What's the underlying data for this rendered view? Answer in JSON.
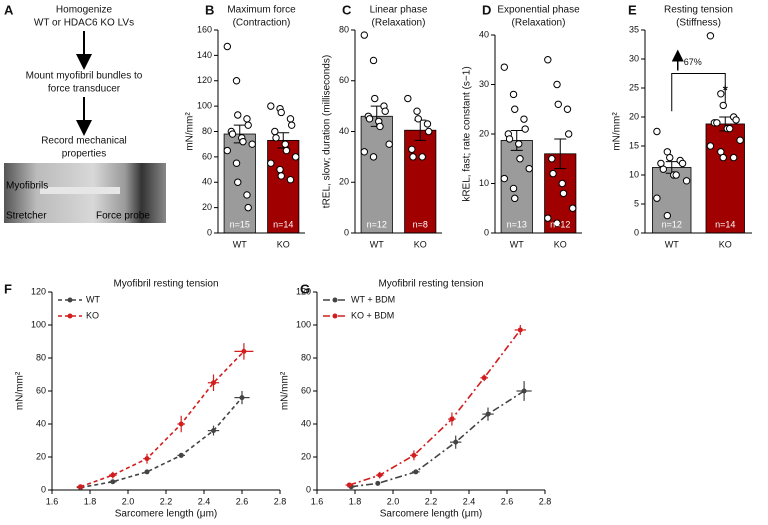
{
  "diagram": {
    "label": "A",
    "steps": [
      [
        "Homogenize",
        "WT or HDAC6 KO LVs"
      ],
      [
        "Mount myofibril bundles to",
        "force transducer"
      ],
      [
        "Record mechanical",
        "properties"
      ]
    ],
    "photo_labels": [
      "Myofibrils",
      "Stretcher",
      "Force probe"
    ]
  },
  "chart_data": [
    {
      "type": "bar",
      "panel": "B",
      "title": [
        "Maximum force",
        "(Contraction)"
      ],
      "ylabel": "mN/mm²",
      "categories": [
        "WT",
        "KO"
      ],
      "values": [
        78,
        73
      ],
      "errors": [
        7,
        6
      ],
      "colors": [
        "#9b9b9b",
        "#a00000"
      ],
      "n_labels": [
        "n=15",
        "n=14"
      ],
      "points": [
        [
          147,
          120,
          93,
          90,
          85,
          80,
          78,
          75,
          72,
          70,
          65,
          55,
          40,
          30,
          20
        ],
        [
          100,
          98,
          95,
          90,
          85,
          80,
          75,
          70,
          65,
          60,
          55,
          50,
          45,
          42
        ]
      ],
      "ylim": [
        0,
        160
      ],
      "yticks": [
        0,
        20,
        40,
        60,
        80,
        100,
        120,
        140,
        160
      ]
    },
    {
      "type": "bar",
      "panel": "C",
      "title": [
        "Linear phase",
        "(Relaxation)"
      ],
      "ylabel": "tREL, slow; duration (milliseconds)",
      "categories": [
        "WT",
        "KO"
      ],
      "values": [
        46,
        40.5
      ],
      "errors": [
        4,
        4
      ],
      "colors": [
        "#9b9b9b",
        "#a00000"
      ],
      "n_labels": [
        "n=12",
        "n=8"
      ],
      "points": [
        [
          78,
          68,
          53,
          50,
          48,
          46,
          45,
          44,
          42,
          35,
          32,
          30
        ],
        [
          53,
          48,
          45,
          43,
          40,
          33,
          30,
          30
        ]
      ],
      "ylim": [
        0,
        80
      ],
      "yticks": [
        0,
        20,
        40,
        60,
        80
      ]
    },
    {
      "type": "bar",
      "panel": "D",
      "title": [
        "Exponential phase",
        "(Relaxation)"
      ],
      "ylabel": "kREL, fast; rate constant (s−1)",
      "categories": [
        "WT",
        "KO"
      ],
      "values": [
        18.7,
        16
      ],
      "errors": [
        2,
        3
      ],
      "colors": [
        "#9b9b9b",
        "#a00000"
      ],
      "n_labels": [
        "n=13",
        "n=12"
      ],
      "points": [
        [
          33.5,
          28,
          25,
          23,
          21,
          20,
          19,
          18,
          15,
          13,
          11,
          9,
          7
        ],
        [
          35,
          30,
          26,
          25,
          20,
          15,
          12,
          10,
          8,
          5,
          3,
          2
        ]
      ],
      "ylim": [
        0,
        40
      ],
      "yticks": [
        0,
        10,
        20,
        30,
        40
      ]
    },
    {
      "type": "bar",
      "panel": "E",
      "title": [
        "Resting tension",
        "(Stiffness)"
      ],
      "ylabel": "mN/mm²",
      "categories": [
        "WT",
        "KO"
      ],
      "values": [
        11.3,
        18.8
      ],
      "errors": [
        1,
        1.2
      ],
      "colors": [
        "#9b9b9b",
        "#a00000"
      ],
      "n_labels": [
        "n=12",
        "n=14"
      ],
      "points": [
        [
          17.5,
          14,
          13,
          12.5,
          12,
          12,
          11,
          10,
          10,
          9,
          6,
          3
        ],
        [
          34,
          24,
          22,
          20,
          19.5,
          19,
          19,
          18,
          18,
          16,
          15,
          14,
          13,
          13
        ]
      ],
      "annotations": [
        "67%",
        "*"
      ],
      "ylim": [
        0,
        35
      ],
      "yticks": [
        0,
        5,
        10,
        15,
        20,
        25,
        30,
        35
      ]
    },
    {
      "type": "line",
      "panel": "F",
      "title": "Myofibril resting tension",
      "xlabel": "Sarcomere length (μm)",
      "ylabel": "mN/mm²",
      "line_style": "dashed",
      "series": [
        {
          "name": "WT",
          "color": "#444444",
          "x": [
            1.75,
            1.92,
            2.1,
            2.28,
            2.45,
            2.6
          ],
          "values": [
            1.5,
            5,
            11,
            21,
            36,
            56
          ],
          "xerr": [
            0.02,
            0.02,
            0.01,
            0.02,
            0.03,
            0.04
          ],
          "yerr": [
            0.5,
            1,
            1,
            1.5,
            3,
            4
          ]
        },
        {
          "name": "KO",
          "color": "#d21e1e",
          "x": [
            1.75,
            1.92,
            2.1,
            2.28,
            2.45,
            2.61
          ],
          "values": [
            2,
            9,
            19,
            40,
            65,
            84
          ],
          "xerr": [
            0.02,
            0.02,
            0.02,
            0.02,
            0.03,
            0.05
          ],
          "yerr": [
            0.5,
            2,
            3,
            5,
            5,
            5
          ]
        }
      ],
      "xlim": [
        1.6,
        2.8
      ],
      "xticks": [
        1.6,
        1.8,
        {
          "value": 2,
          "label": "2.0"
        },
        2.2,
        2.4,
        2.6,
        2.8
      ],
      "ylim": [
        0,
        120
      ],
      "yticks": [
        0,
        20,
        40,
        60,
        80,
        100,
        120
      ]
    },
    {
      "type": "line",
      "panel": "G",
      "title": "Myofibril resting tension",
      "xlabel": "Sarcomere length (μm)",
      "ylabel": "mN/mm²",
      "line_style": "dashdot",
      "series": [
        {
          "name": "WT + BDM",
          "color": "#444444",
          "x": [
            1.78,
            1.92,
            2.12,
            2.33,
            2.5,
            2.69
          ],
          "values": [
            2,
            4,
            11,
            29,
            46,
            60
          ],
          "xerr": [
            0.02,
            0.01,
            0.02,
            0.03,
            0.03,
            0.04
          ],
          "yerr": [
            0.5,
            1,
            1,
            4,
            4,
            6
          ]
        },
        {
          "name": "KO + BDM",
          "color": "#d21e1e",
          "x": [
            1.77,
            1.93,
            2.11,
            2.31,
            2.48,
            2.67
          ],
          "values": [
            3,
            9,
            21,
            43,
            68,
            97
          ],
          "xerr": [
            0.02,
            0.02,
            0.02,
            0.02,
            0.02,
            0.03
          ],
          "yerr": [
            1,
            2,
            3,
            4,
            2,
            3
          ]
        }
      ],
      "xlim": [
        1.6,
        2.8
      ],
      "xticks": [
        1.6,
        1.8,
        {
          "value": 2,
          "label": "2.0"
        },
        2.2,
        2.4,
        2.6,
        2.8
      ],
      "ylim": [
        0,
        120
      ],
      "yticks": [
        0,
        20,
        40,
        60,
        80,
        100,
        120
      ]
    }
  ]
}
